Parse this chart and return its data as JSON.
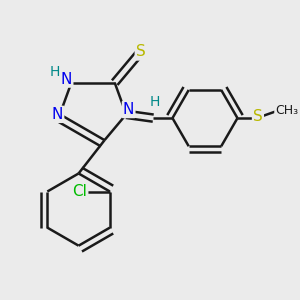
{
  "bg_color": "#ebebeb",
  "atom_colors": {
    "C": "#1a1a1a",
    "N": "#0000ee",
    "S": "#b8b800",
    "Cl": "#00bb00",
    "H": "#008888"
  },
  "bond_color": "#1a1a1a",
  "bond_width": 1.8,
  "figsize": [
    3.0,
    3.0
  ],
  "dpi": 100
}
